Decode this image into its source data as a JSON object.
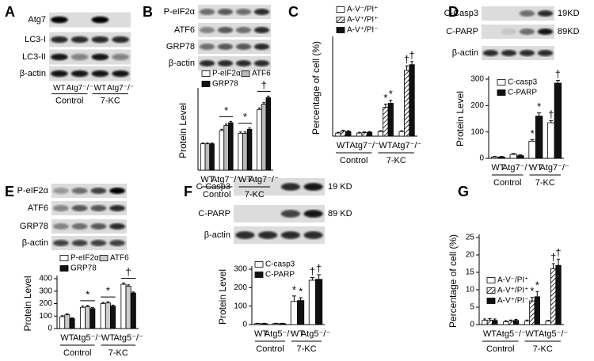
{
  "panels": [
    "A",
    "B",
    "C",
    "D",
    "E",
    "F",
    "G"
  ],
  "blots": [
    {
      "rows": [
        {
          "label": "Atg7"
        },
        {
          "label": "LC3-I"
        },
        {
          "label": "LC3-II"
        },
        {
          "label": "β-actin"
        }
      ],
      "lanes": [
        "WT",
        "Atg7⁻/⁻",
        "WT",
        "Atg7⁻/⁻"
      ],
      "groups": [
        "Control",
        "7-KC"
      ]
    },
    {
      "rows": [
        {
          "label": "P-eIF2α"
        },
        {
          "label": "ATF6"
        },
        {
          "label": "GRP78"
        },
        {
          "label": "β-actin"
        }
      ]
    },
    {
      "rows": [
        {
          "label": "C-Casp3",
          "size": "19KD"
        },
        {
          "label": "C-PARP",
          "size": "89KD"
        },
        {
          "label": "β-actin"
        }
      ]
    },
    {
      "rows": [
        {
          "label": "P-eIF2α"
        },
        {
          "label": "ATF6"
        },
        {
          "label": "GRP78"
        },
        {
          "label": "β-actin"
        }
      ]
    },
    {
      "rows": [
        {
          "label": "C-Casp3",
          "size": "19 KD"
        },
        {
          "label": "C-PARP",
          "size": "89 KD"
        },
        {
          "label": "β-actin"
        }
      ]
    }
  ],
  "chart_data": [
    {
      "type": "bar",
      "ylabel": "Protein Level",
      "ylim": [
        0,
        300
      ],
      "categories": [
        "WT",
        "Atg7⁻/⁻",
        "WT",
        "Atg7⁻/⁻"
      ],
      "groups": [
        "Control",
        "7-KC"
      ],
      "bracket_labels": [
        null,
        "*",
        "*",
        "†"
      ],
      "series": [
        {
          "name": "P-eIF2α",
          "color": "#ffffff",
          "values": [
            100,
            150,
            140,
            230
          ],
          "errors": [
            3,
            5,
            5,
            6
          ]
        },
        {
          "name": "ATF6",
          "color": "#bbbbbb",
          "values": [
            100,
            170,
            140,
            250
          ],
          "errors": [
            3,
            5,
            5,
            6
          ]
        },
        {
          "name": "GRP78",
          "color": "#111111",
          "values": [
            100,
            180,
            155,
            275
          ],
          "errors": [
            3,
            5,
            5,
            6
          ]
        }
      ]
    },
    {
      "type": "bar",
      "ylabel": "Percentage of  cell (%)",
      "ylim": [
        0,
        25
      ],
      "categories": [
        "WT",
        "Atg7⁻/⁻",
        "WT",
        "Atg7⁻/⁻"
      ],
      "groups": [
        "Control",
        "7-KC"
      ],
      "series": [
        {
          "name": "A-V⁻/PI⁺",
          "color": "#ffffff",
          "values": [
            0.8,
            0.8,
            1.2,
            1.2
          ],
          "errors": [
            0.2,
            0.2,
            0.2,
            0.2
          ]
        },
        {
          "name": "A-V⁺/PI⁺",
          "color": "#ffffff",
          "hatch": true,
          "values": [
            1.3,
            0.9,
            7.5,
            17
          ],
          "errors": [
            0.2,
            0.2,
            0.8,
            1.2
          ],
          "markers": [
            null,
            null,
            "*",
            "†"
          ]
        },
        {
          "name": "A-V⁺/PI⁻",
          "color": "#111111",
          "values": [
            1.2,
            1,
            8.5,
            18.5
          ],
          "errors": [
            0.2,
            0.2,
            0.8,
            0.8
          ],
          "markers": [
            null,
            null,
            "*",
            "†"
          ]
        }
      ]
    },
    {
      "type": "bar",
      "ylabel": "Protein Level",
      "ylim": [
        0,
        300
      ],
      "yticks": [
        0,
        100,
        200,
        300
      ],
      "categories": [
        "WT",
        "Atg7⁻/⁻",
        "WT",
        "Atg7⁻/⁻"
      ],
      "groups": [
        "Control",
        "7-KC"
      ],
      "series": [
        {
          "name": "C-casp3",
          "color": "#ffffff",
          "values": [
            5,
            15,
            65,
            135
          ],
          "errors": [
            2,
            3,
            6,
            8
          ],
          "markers": [
            null,
            null,
            "*",
            "†"
          ]
        },
        {
          "name": "C-PARP",
          "color": "#111111",
          "values": [
            5,
            10,
            160,
            285
          ],
          "errors": [
            2,
            3,
            12,
            10
          ],
          "markers": [
            null,
            null,
            "*",
            "†"
          ]
        }
      ]
    },
    {
      "type": "bar",
      "ylabel": "Protein Level",
      "ylim": [
        0,
        400
      ],
      "yticks": [
        0,
        100,
        200,
        300,
        400
      ],
      "categories": [
        "WT",
        "Atg5⁻/⁻",
        "WT",
        "Atg5⁻/⁻"
      ],
      "groups": [
        "Control",
        "7-KC"
      ],
      "bracket_labels": [
        null,
        "*",
        "*",
        "†"
      ],
      "series": [
        {
          "name": "P-eIF2α",
          "color": "#ffffff",
          "values": [
            95,
            170,
            200,
            355
          ],
          "errors": [
            8,
            10,
            10,
            10
          ]
        },
        {
          "name": "ATF6",
          "color": "#cccccc",
          "values": [
            110,
            175,
            205,
            340
          ],
          "errors": [
            8,
            10,
            10,
            10
          ]
        },
        {
          "name": "GRP78",
          "color": "#111111",
          "values": [
            80,
            160,
            180,
            285
          ],
          "errors": [
            6,
            8,
            8,
            8
          ]
        }
      ]
    },
    {
      "type": "bar",
      "ylabel": "Protein Level",
      "ylim": [
        0,
        300
      ],
      "yticks": [
        0,
        100,
        200,
        300
      ],
      "categories": [
        "WT",
        "Atg5⁻/⁻",
        "WT",
        "Atg5⁻/⁻"
      ],
      "groups": [
        "Control",
        "7-KC"
      ],
      "series": [
        {
          "name": "C-casp3",
          "color": "#ffffff",
          "values": [
            5,
            5,
            125,
            240
          ],
          "errors": [
            2,
            2,
            30,
            15
          ],
          "markers": [
            null,
            null,
            "*",
            "†"
          ]
        },
        {
          "name": "C-PARP",
          "color": "#111111",
          "values": [
            5,
            5,
            130,
            245
          ],
          "errors": [
            2,
            2,
            15,
            25
          ],
          "markers": [
            null,
            null,
            "*",
            "†"
          ]
        }
      ]
    },
    {
      "type": "bar",
      "ylabel": "Percentage of  cell (%)",
      "ylim": [
        0,
        25
      ],
      "yticks": [
        0,
        5,
        10,
        15,
        20,
        25
      ],
      "categories": [
        "WT",
        "Atg5⁻/⁻",
        "WT",
        "Atg5⁻/⁻"
      ],
      "groups": [
        "Control",
        "7-KC"
      ],
      "series": [
        {
          "name": "A-V⁻/PI⁺",
          "color": "#ffffff",
          "values": [
            1.2,
            0.8,
            1,
            1
          ],
          "errors": [
            0.4,
            0.3,
            0.3,
            0.2
          ]
        },
        {
          "name": "A-V⁺/PI⁺",
          "color": "#ffffff",
          "hatch": true,
          "values": [
            1.3,
            1,
            6.8,
            16
          ],
          "errors": [
            0.4,
            0.3,
            1,
            1.5
          ],
          "markers": [
            null,
            null,
            "*",
            "†"
          ]
        },
        {
          "name": "A-V⁺/PI⁻",
          "color": "#111111",
          "values": [
            1.2,
            1.2,
            8,
            17
          ],
          "errors": [
            0.4,
            0.3,
            1.5,
            1.8
          ],
          "markers": [
            null,
            null,
            "*",
            "†"
          ]
        }
      ]
    }
  ]
}
